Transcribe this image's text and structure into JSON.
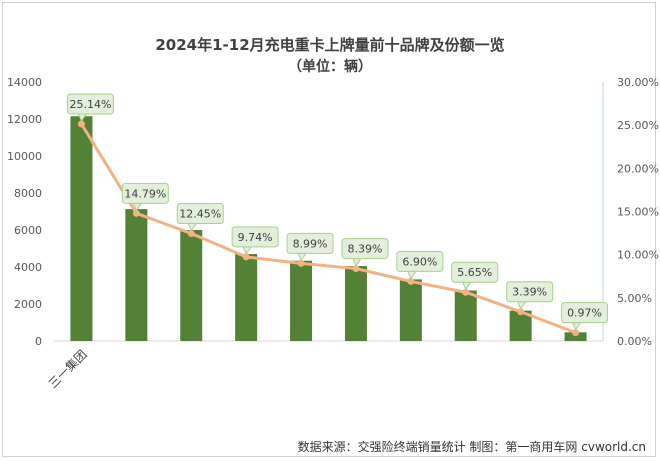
{
  "chart_data": {
    "type": "bar",
    "title": "2024年1-12月充电重卡上牌量前十品牌及份额一览",
    "subtitle": "（单位：辆）",
    "categories": [
      "三一集团",
      "",
      "",
      "",
      "",
      "",
      "",
      "",
      "",
      ""
    ],
    "series": [
      {
        "type": "bar",
        "axis": "left",
        "values": [
          12150,
          7130,
          6000,
          4700,
          4340,
          4050,
          3330,
          2730,
          1640,
          470
        ]
      },
      {
        "type": "line",
        "axis": "right",
        "values": [
          25.14,
          14.79,
          12.45,
          9.74,
          8.99,
          8.39,
          6.9,
          5.65,
          3.39,
          0.97
        ]
      }
    ],
    "data_labels": [
      "25.14%",
      "14.79%",
      "12.45%",
      "9.74%",
      "8.99%",
      "8.39%",
      "6.90%",
      "5.65%",
      "3.39%",
      "0.97%"
    ],
    "y_left": {
      "min": 0,
      "max": 14000,
      "ticks": [
        "0",
        "2000",
        "4000",
        "6000",
        "8000",
        "10000",
        "12000",
        "14000"
      ]
    },
    "y_right": {
      "min": 0,
      "max": 30,
      "ticks": [
        "0.00%",
        "5.00%",
        "10.00%",
        "15.00%",
        "20.00%",
        "25.00%",
        "30.00%"
      ]
    },
    "grid": false,
    "legend": "none",
    "colors": {
      "bar": "#538135",
      "line": "#f4b183",
      "label_bg": "#e2efda",
      "label_border": "#a9d18e"
    }
  },
  "footer": {
    "source": "数据来源：交强险终端销量统计 制图：第一商用车网 cvworld.cn"
  }
}
